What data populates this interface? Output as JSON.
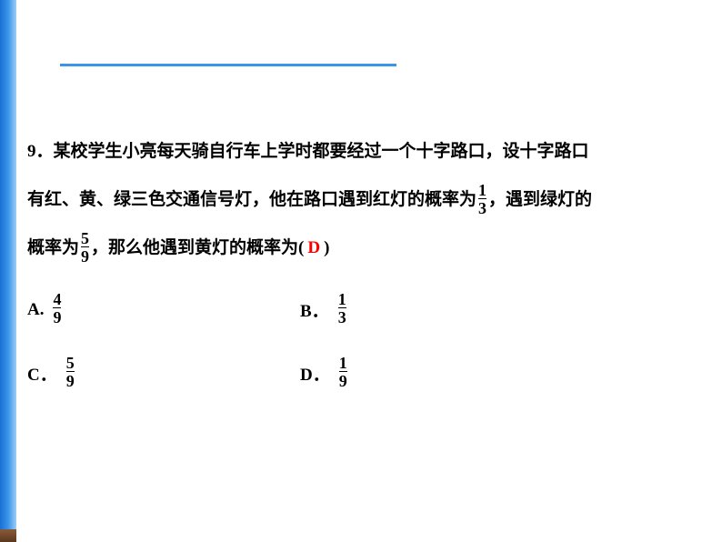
{
  "decor": {
    "top_line_color": "#3a95e8",
    "left_bar_gradient": [
      "#1a6fd4",
      "#3a95e8",
      "#9fcef5"
    ],
    "brown_edge_gradient": [
      "#5a3820",
      "#8a5a38"
    ]
  },
  "question": {
    "number": "9．",
    "line1a": "某校学生小亮每天骑自行车上学时都要经过一个十字路口，设十字路口",
    "line2a": "有红、黄、绿三色交通信号灯，他在路口遇到红灯的概率为",
    "line2b": "，遇到绿灯的",
    "line3a": "概率为",
    "line3b": "，那么他遇到黄灯的概率为(",
    "line3c": ")",
    "frac1": {
      "num": "1",
      "den": "3"
    },
    "frac2": {
      "num": "5",
      "den": "9"
    },
    "answer": "D",
    "answer_color": "#ff0000"
  },
  "options": {
    "A": {
      "label": "A.",
      "num": "4",
      "den": "9"
    },
    "B": {
      "label": "B．",
      "num": "1",
      "den": "3"
    },
    "C": {
      "label": "C．",
      "num": "5",
      "den": "9"
    },
    "D": {
      "label": "D．",
      "num": "1",
      "den": "9"
    }
  },
  "typography": {
    "question_fontsize": 19,
    "question_lineheight": 2.8,
    "question_fontweight": "bold",
    "text_color": "#000000",
    "background": "#ffffff"
  }
}
